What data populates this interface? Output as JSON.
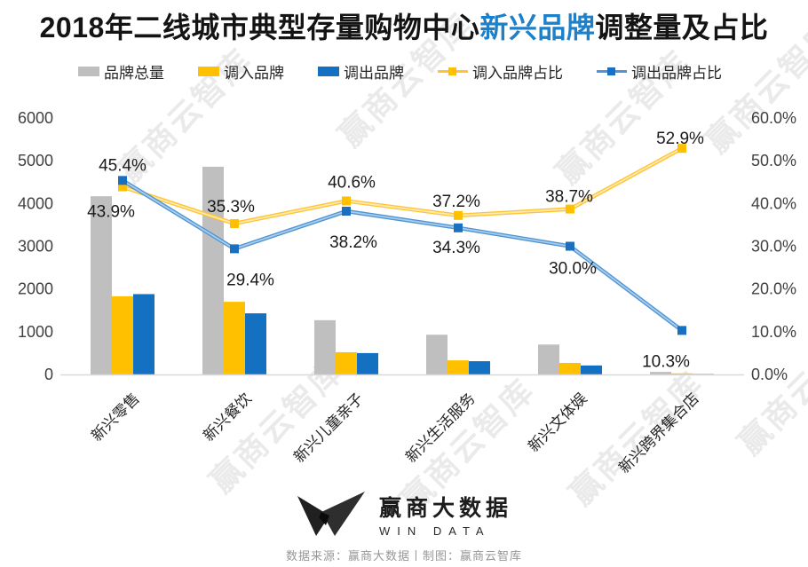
{
  "title": {
    "prefix": "2018年二线城市典型存量购物中心",
    "highlight": "新兴品牌",
    "suffix": "调整量及占比",
    "highlight_color": "#1E80C8"
  },
  "legend": {
    "items": [
      {
        "label": "品牌总量",
        "type": "bar",
        "color": "#BFBFBF"
      },
      {
        "label": "调入品牌",
        "type": "bar",
        "color": "#FFC000"
      },
      {
        "label": "调出品牌",
        "type": "bar",
        "color": "#1470C0"
      },
      {
        "label": "调入品牌占比",
        "type": "line",
        "color": "#FFC432"
      },
      {
        "label": "调出品牌占比",
        "type": "line",
        "color": "#4E94D6"
      }
    ]
  },
  "chart_data": {
    "type": "bar+line combo",
    "categories": [
      "新兴零售",
      "新兴餐饮",
      "新兴儿童亲子",
      "新兴生活服务",
      "新兴文体娱",
      "新兴跨界集合店"
    ],
    "bar_series": [
      {
        "name": "品牌总量",
        "color": "#BFBFBF",
        "values": [
          4170,
          4860,
          1270,
          930,
          700,
          60
        ]
      },
      {
        "name": "调入品牌",
        "color": "#FFC000",
        "values": [
          1830,
          1700,
          520,
          330,
          270,
          25
        ]
      },
      {
        "name": "调出品牌",
        "color": "#1470C0",
        "values": [
          1880,
          1430,
          500,
          310,
          210,
          10
        ]
      }
    ],
    "line_series": [
      {
        "name": "调入品牌占比",
        "color": "#FFC432",
        "inner_color": "#FFE9B0",
        "marker_color": "#FFC000",
        "values": [
          43.9,
          35.3,
          40.6,
          37.2,
          38.7,
          52.9
        ],
        "labels": [
          "43.9%",
          "35.3%",
          "40.6%",
          "37.2%",
          "38.7%",
          "52.9%"
        ]
      },
      {
        "name": "调出品牌占比",
        "color": "#4E94D6",
        "inner_color": "#A9CDEA",
        "marker_color": "#1B6FC0",
        "values": [
          45.4,
          29.4,
          38.2,
          34.3,
          30.0,
          10.3
        ],
        "labels": [
          "45.4%",
          "29.4%",
          "38.2%",
          "34.3%",
          "30.0%",
          "10.3%"
        ]
      }
    ],
    "left_axis": {
      "min": 0,
      "max": 6000,
      "step": 1000,
      "ticks": [
        "6000",
        "5000",
        "4000",
        "3000",
        "2000",
        "1000",
        "0"
      ]
    },
    "right_axis": {
      "min": 0,
      "max": 60,
      "step": 10,
      "ticks": [
        "60.0%",
        "50.0%",
        "40.0%",
        "30.0%",
        "20.0%",
        "10.0%",
        "0.0%"
      ]
    },
    "grid": false,
    "legend_position": "top"
  },
  "watermark": {
    "text": "赢商云智库"
  },
  "footer": {
    "logo_title": "赢商大数据",
    "logo_subtitle": "WIN DATA",
    "source": "数据来源：赢商大数据丨制图：赢商云智库"
  }
}
